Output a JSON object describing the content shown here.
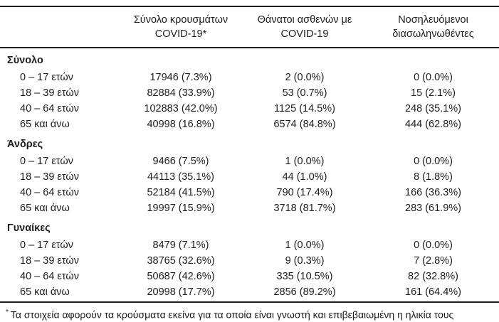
{
  "table": {
    "columns": [
      {
        "line1": "Σύνολο κρουσμάτων",
        "line2": "COVID-19*"
      },
      {
        "line1": "Θάνατοι ασθενών με",
        "line2": "COVID-19"
      },
      {
        "line1": "Νοσηλευόμενοι",
        "line2": "διασωληνωθέντες"
      }
    ],
    "groups": [
      {
        "label": "Σύνολο",
        "rows": [
          {
            "age": "0 – 17 ετών",
            "cases": "17946 (7.3%)",
            "deaths": "2 (0.0%)",
            "intubated": "0 (0.0%)"
          },
          {
            "age": "18 – 39 ετών",
            "cases": "82884 (33.9%)",
            "deaths": "53 (0.7%)",
            "intubated": "15 (2.1%)"
          },
          {
            "age": "40 – 64 ετών",
            "cases": "102883 (42.0%)",
            "deaths": "1125 (14.5%)",
            "intubated": "248 (35.1%)"
          },
          {
            "age": "65 και άνω",
            "cases": "40998 (16.8%)",
            "deaths": "6574 (84.8%)",
            "intubated": "444 (62.8%)"
          }
        ]
      },
      {
        "label": "Άνδρες",
        "rows": [
          {
            "age": "0 – 17 ετών",
            "cases": "9466 (7.5%)",
            "deaths": "1 (0.0%)",
            "intubated": "0 (0.0%)"
          },
          {
            "age": "18 – 39 ετών",
            "cases": "44113 (35.1%)",
            "deaths": "44 (1.0%)",
            "intubated": "8 (1.8%)"
          },
          {
            "age": "40 – 64 ετών",
            "cases": "52184 (41.5%)",
            "deaths": "790 (17.4%)",
            "intubated": "166 (36.3%)"
          },
          {
            "age": "65 και άνω",
            "cases": "19997 (15.9%)",
            "deaths": "3718 (81.7%)",
            "intubated": "283 (61.9%)"
          }
        ]
      },
      {
        "label": "Γυναίκες",
        "rows": [
          {
            "age": "0 – 17 ετών",
            "cases": "8479 (7.1%)",
            "deaths": "1 (0.0%)",
            "intubated": "0 (0.0%)"
          },
          {
            "age": "18 – 39 ετών",
            "cases": "38765 (32.6%)",
            "deaths": "9 (0.3%)",
            "intubated": "7 (2.8%)"
          },
          {
            "age": "40 – 64 ετών",
            "cases": "50687 (42.6%)",
            "deaths": "335 (10.5%)",
            "intubated": "82 (32.8%)"
          },
          {
            "age": "65 και άνω",
            "cases": "20998 (17.7%)",
            "deaths": "2856 (89.2%)",
            "intubated": "161 (64.4%)"
          }
        ]
      }
    ],
    "footnote": {
      "marker": "*",
      "text": "Τα στοιχεία αφορούν τα κρούσματα εκείνα για τα οποία είναι γνωστή και επιβεβαιωμένη η ηλικία τους"
    }
  },
  "colors": {
    "text": "#1d1d1b",
    "rule": "#1d1d1b",
    "background": "#ffffff"
  }
}
